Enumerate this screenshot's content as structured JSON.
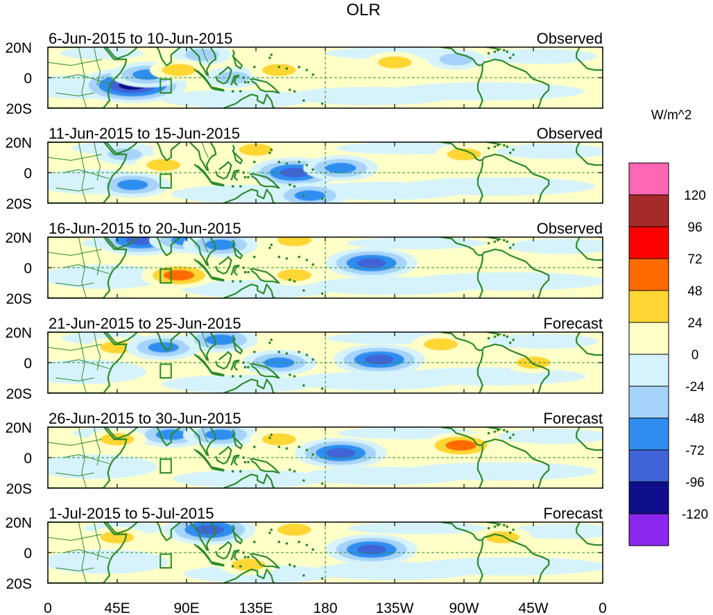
{
  "chart_data": {
    "type": "heatmap",
    "title": "OLR",
    "units": "W/m^2",
    "x_ticks": [
      "0",
      "45E",
      "90E",
      "135E",
      "180",
      "135W",
      "90W",
      "45W",
      "0"
    ],
    "y_ticks": [
      "20N",
      "0",
      "20S"
    ],
    "xlim": [
      0,
      360
    ],
    "ylim": [
      -20,
      20
    ],
    "panels": [
      {
        "period": "6-Jun-2015 to 10-Jun-2015",
        "status": "Observed",
        "features": [
          {
            "lon": 55,
            "lat": -5,
            "value": -110
          },
          {
            "lon": 65,
            "lat": 2,
            "value": -50
          },
          {
            "lon": 100,
            "lat": 15,
            "value": -40
          },
          {
            "lon": 120,
            "lat": 0,
            "value": -40
          },
          {
            "lon": 85,
            "lat": 5,
            "value": 30
          },
          {
            "lon": 150,
            "lat": 5,
            "value": 30
          },
          {
            "lon": 225,
            "lat": 10,
            "value": 30
          },
          {
            "lon": 265,
            "lat": 12,
            "value": -40
          }
        ]
      },
      {
        "period": "11-Jun-2015 to 15-Jun-2015",
        "status": "Observed",
        "features": [
          {
            "lon": 50,
            "lat": 12,
            "value": -40
          },
          {
            "lon": 55,
            "lat": -8,
            "value": -55
          },
          {
            "lon": 160,
            "lat": 0,
            "value": -75
          },
          {
            "lon": 190,
            "lat": 3,
            "value": -50
          },
          {
            "lon": 170,
            "lat": -15,
            "value": -50
          },
          {
            "lon": 270,
            "lat": 12,
            "value": 40
          },
          {
            "lon": 75,
            "lat": 5,
            "value": 30
          },
          {
            "lon": 135,
            "lat": 15,
            "value": 30
          }
        ]
      },
      {
        "period": "16-Jun-2015 to 20-Jun-2015",
        "status": "Observed",
        "features": [
          {
            "lon": 60,
            "lat": 18,
            "value": -75
          },
          {
            "lon": 90,
            "lat": 18,
            "value": -50
          },
          {
            "lon": 112,
            "lat": 15,
            "value": -55
          },
          {
            "lon": 210,
            "lat": 3,
            "value": -75
          },
          {
            "lon": 85,
            "lat": -5,
            "value": 55
          },
          {
            "lon": 160,
            "lat": 18,
            "value": 30
          },
          {
            "lon": 160,
            "lat": -5,
            "value": 30
          }
        ]
      },
      {
        "period": "21-Jun-2015 to 25-Jun-2015",
        "status": "Forecast",
        "features": [
          {
            "lon": 45,
            "lat": 10,
            "value": 35
          },
          {
            "lon": 75,
            "lat": 10,
            "value": -55
          },
          {
            "lon": 112,
            "lat": 15,
            "value": -50
          },
          {
            "lon": 150,
            "lat": 0,
            "value": -55
          },
          {
            "lon": 215,
            "lat": 2,
            "value": -75
          },
          {
            "lon": 315,
            "lat": 0,
            "value": 30
          },
          {
            "lon": 255,
            "lat": 12,
            "value": 30
          }
        ]
      },
      {
        "period": "26-Jun-2015 to 30-Jun-2015",
        "status": "Forecast",
        "features": [
          {
            "lon": 80,
            "lat": 15,
            "value": -55
          },
          {
            "lon": 112,
            "lat": 15,
            "value": -50
          },
          {
            "lon": 190,
            "lat": 3,
            "value": -80
          },
          {
            "lon": 268,
            "lat": 8,
            "value": 55
          },
          {
            "lon": 45,
            "lat": 12,
            "value": 30
          },
          {
            "lon": 150,
            "lat": 12,
            "value": 30
          }
        ]
      },
      {
        "period": "1-Jul-2015 to 5-Jul-2015",
        "status": "Forecast",
        "features": [
          {
            "lon": 105,
            "lat": 15,
            "value": -75
          },
          {
            "lon": 210,
            "lat": 2,
            "value": -75
          },
          {
            "lon": 45,
            "lat": 10,
            "value": 30
          },
          {
            "lon": 160,
            "lat": 15,
            "value": 30
          },
          {
            "lon": 295,
            "lat": 10,
            "value": 35
          },
          {
            "lon": 130,
            "lat": -8,
            "value": 30
          }
        ]
      }
    ],
    "colorbar": {
      "labels": [
        "120",
        "96",
        "72",
        "48",
        "24",
        "0",
        "-24",
        "-48",
        "-72",
        "-96",
        "-120"
      ],
      "colors": [
        "#ff66b3",
        "#a52a2a",
        "#ff0000",
        "#ff6a00",
        "#ffd633",
        "#ffffc8",
        "#d6f3fb",
        "#a6d3fa",
        "#2f8ef0",
        "#4163d8",
        "#0f0f8c",
        "#8b28f0"
      ]
    },
    "map_colors": {
      "coast": "#2a8a2a",
      "border": "#2a8a2a",
      "guide": "#2a8a2a"
    }
  }
}
